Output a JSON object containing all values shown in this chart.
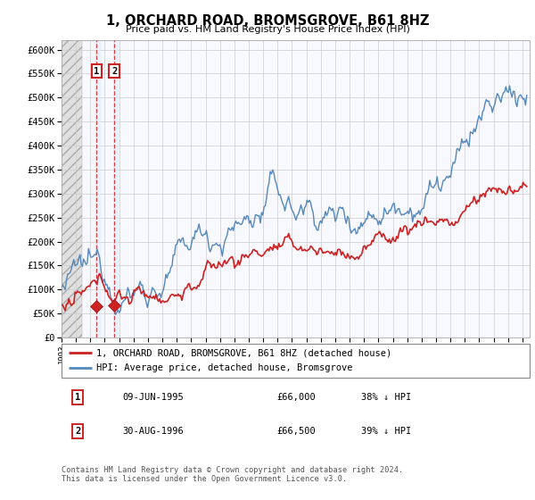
{
  "title": "1, ORCHARD ROAD, BROMSGROVE, B61 8HZ",
  "subtitle": "Price paid vs. HM Land Registry's House Price Index (HPI)",
  "ylim": [
    0,
    620000
  ],
  "yticks": [
    0,
    50000,
    100000,
    150000,
    200000,
    250000,
    300000,
    350000,
    400000,
    450000,
    500000,
    550000,
    600000
  ],
  "ytick_labels": [
    "£0",
    "£50K",
    "£100K",
    "£150K",
    "£200K",
    "£250K",
    "£300K",
    "£350K",
    "£400K",
    "£450K",
    "£500K",
    "£550K",
    "£600K"
  ],
  "hpi_color": "#5588bb",
  "price_color": "#cc2222",
  "marker_color": "#cc2222",
  "vline_color": "#cc2222",
  "transactions": [
    {
      "date_num": 1995.44,
      "price": 66000,
      "label": "1"
    },
    {
      "date_num": 1996.66,
      "price": 66500,
      "label": "2"
    }
  ],
  "legend_entries": [
    {
      "label": "1, ORCHARD ROAD, BROMSGROVE, B61 8HZ (detached house)",
      "color": "#cc2222"
    },
    {
      "label": "HPI: Average price, detached house, Bromsgrove",
      "color": "#5588bb"
    }
  ],
  "table_rows": [
    {
      "num": "1",
      "date": "09-JUN-1995",
      "price": "£66,000",
      "change": "38% ↓ HPI"
    },
    {
      "num": "2",
      "date": "30-AUG-1996",
      "price": "£66,500",
      "change": "39% ↓ HPI"
    }
  ],
  "footnote": "Contains HM Land Registry data © Crown copyright and database right 2024.\nThis data is licensed under the Open Government Licence v3.0.",
  "plot_bg": "#f8f8ff",
  "xlim_start": 1993.0,
  "xlim_end": 2025.5,
  "hpi_anchors": [
    [
      1993.0,
      107000
    ],
    [
      1993.5,
      108000
    ],
    [
      1994.0,
      109000
    ],
    [
      1994.5,
      110000
    ],
    [
      1995.0,
      109500
    ],
    [
      1995.5,
      110000
    ],
    [
      1996.0,
      111000
    ],
    [
      1996.5,
      112000
    ],
    [
      1997.0,
      114000
    ],
    [
      1997.5,
      118000
    ],
    [
      1998.0,
      122000
    ],
    [
      1998.5,
      126000
    ],
    [
      1999.0,
      130000
    ],
    [
      1999.5,
      136000
    ],
    [
      2000.0,
      143000
    ],
    [
      2000.5,
      152000
    ],
    [
      2001.0,
      162000
    ],
    [
      2001.5,
      172000
    ],
    [
      2002.0,
      185000
    ],
    [
      2002.5,
      200000
    ],
    [
      2003.0,
      210000
    ],
    [
      2003.5,
      218000
    ],
    [
      2004.0,
      228000
    ],
    [
      2004.5,
      238000
    ],
    [
      2005.0,
      243000
    ],
    [
      2005.5,
      248000
    ],
    [
      2006.0,
      255000
    ],
    [
      2006.5,
      265000
    ],
    [
      2007.0,
      275000
    ],
    [
      2007.25,
      285000
    ],
    [
      2007.5,
      295000
    ],
    [
      2007.75,
      302000
    ],
    [
      2008.0,
      295000
    ],
    [
      2008.25,
      285000
    ],
    [
      2008.5,
      278000
    ],
    [
      2008.75,
      268000
    ],
    [
      2009.0,
      258000
    ],
    [
      2009.25,
      255000
    ],
    [
      2009.5,
      258000
    ],
    [
      2009.75,
      263000
    ],
    [
      2010.0,
      268000
    ],
    [
      2010.25,
      272000
    ],
    [
      2010.5,
      270000
    ],
    [
      2010.75,
      267000
    ],
    [
      2011.0,
      265000
    ],
    [
      2011.5,
      263000
    ],
    [
      2012.0,
      262000
    ],
    [
      2012.5,
      265000
    ],
    [
      2013.0,
      268000
    ],
    [
      2013.5,
      275000
    ],
    [
      2014.0,
      285000
    ],
    [
      2014.5,
      295000
    ],
    [
      2015.0,
      305000
    ],
    [
      2015.5,
      315000
    ],
    [
      2016.0,
      325000
    ],
    [
      2016.5,
      338000
    ],
    [
      2017.0,
      350000
    ],
    [
      2017.5,
      360000
    ],
    [
      2018.0,
      368000
    ],
    [
      2018.5,
      372000
    ],
    [
      2019.0,
      375000
    ],
    [
      2019.5,
      378000
    ],
    [
      2020.0,
      378000
    ],
    [
      2020.25,
      372000
    ],
    [
      2020.5,
      376000
    ],
    [
      2020.75,
      390000
    ],
    [
      2021.0,
      405000
    ],
    [
      2021.25,
      420000
    ],
    [
      2021.5,
      435000
    ],
    [
      2021.75,
      448000
    ],
    [
      2022.0,
      458000
    ],
    [
      2022.25,
      468000
    ],
    [
      2022.5,
      475000
    ],
    [
      2022.75,
      480000
    ],
    [
      2023.0,
      478000
    ],
    [
      2023.25,
      480000
    ],
    [
      2023.5,
      482000
    ],
    [
      2023.75,
      488000
    ],
    [
      2024.0,
      492000
    ],
    [
      2024.25,
      496000
    ],
    [
      2024.5,
      498000
    ],
    [
      2024.75,
      502000
    ],
    [
      2025.0,
      504000
    ],
    [
      2025.3,
      502000
    ]
  ],
  "price_anchors": [
    [
      1993.0,
      65000
    ],
    [
      1993.5,
      65500
    ],
    [
      1994.0,
      66000
    ],
    [
      1994.5,
      66500
    ],
    [
      1995.0,
      67000
    ],
    [
      1995.5,
      68000
    ],
    [
      1996.0,
      68500
    ],
    [
      1996.5,
      69000
    ],
    [
      1997.0,
      70000
    ],
    [
      1997.5,
      72000
    ],
    [
      1998.0,
      75000
    ],
    [
      1998.5,
      78000
    ],
    [
      1999.0,
      81000
    ],
    [
      1999.5,
      85000
    ],
    [
      2000.0,
      90000
    ],
    [
      2000.5,
      96000
    ],
    [
      2001.0,
      102000
    ],
    [
      2001.5,
      109000
    ],
    [
      2002.0,
      118000
    ],
    [
      2002.5,
      128000
    ],
    [
      2003.0,
      136000
    ],
    [
      2003.5,
      143000
    ],
    [
      2004.0,
      150000
    ],
    [
      2004.5,
      158000
    ],
    [
      2005.0,
      163000
    ],
    [
      2005.5,
      168000
    ],
    [
      2006.0,
      174000
    ],
    [
      2006.5,
      180000
    ],
    [
      2007.0,
      185000
    ],
    [
      2007.25,
      190000
    ],
    [
      2007.5,
      195000
    ],
    [
      2007.75,
      197000
    ],
    [
      2008.0,
      193000
    ],
    [
      2008.25,
      188000
    ],
    [
      2008.5,
      183000
    ],
    [
      2008.75,
      176000
    ],
    [
      2009.0,
      170000
    ],
    [
      2009.25,
      168000
    ],
    [
      2009.5,
      170000
    ],
    [
      2009.75,
      173000
    ],
    [
      2010.0,
      176000
    ],
    [
      2010.25,
      179000
    ],
    [
      2010.5,
      177000
    ],
    [
      2010.75,
      175000
    ],
    [
      2011.0,
      174000
    ],
    [
      2011.5,
      173000
    ],
    [
      2012.0,
      172000
    ],
    [
      2012.5,
      174000
    ],
    [
      2013.0,
      176000
    ],
    [
      2013.5,
      181000
    ],
    [
      2014.0,
      187000
    ],
    [
      2014.5,
      194000
    ],
    [
      2015.0,
      200000
    ],
    [
      2015.5,
      207000
    ],
    [
      2016.0,
      214000
    ],
    [
      2016.5,
      222000
    ],
    [
      2017.0,
      230000
    ],
    [
      2017.5,
      237000
    ],
    [
      2018.0,
      243000
    ],
    [
      2018.5,
      247000
    ],
    [
      2019.0,
      250000
    ],
    [
      2019.5,
      253000
    ],
    [
      2020.0,
      253000
    ],
    [
      2020.25,
      249000
    ],
    [
      2020.5,
      252000
    ],
    [
      2020.75,
      260000
    ],
    [
      2021.0,
      268000
    ],
    [
      2021.25,
      275000
    ],
    [
      2021.5,
      281000
    ],
    [
      2021.75,
      287000
    ],
    [
      2022.0,
      292000
    ],
    [
      2022.25,
      297000
    ],
    [
      2022.5,
      302000
    ],
    [
      2022.75,
      305000
    ],
    [
      2023.0,
      305000
    ],
    [
      2023.25,
      306000
    ],
    [
      2023.5,
      306000
    ],
    [
      2023.75,
      308000
    ],
    [
      2024.0,
      309000
    ],
    [
      2024.25,
      310000
    ],
    [
      2024.5,
      309000
    ],
    [
      2024.75,
      308000
    ],
    [
      2025.0,
      308000
    ],
    [
      2025.3,
      307000
    ]
  ]
}
